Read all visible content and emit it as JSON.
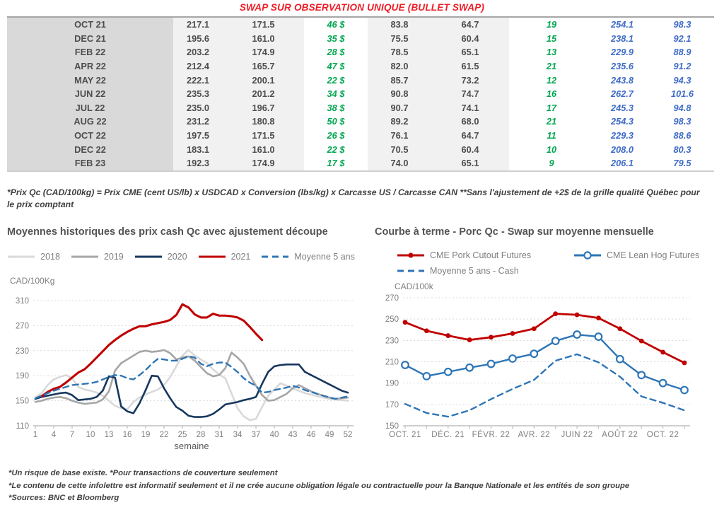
{
  "title": "SWAP SUR OBSERVATION UNIQUE (BULLET SWAP)",
  "colors": {
    "title_red": "#ee1c25",
    "table_green": "#00a650",
    "table_blue": "#3f6bc8",
    "grid": "#d9d9d9",
    "axis": "#bfbfbf",
    "tick_text": "#7f7f7f"
  },
  "table": {
    "rows": [
      [
        "OCT 21",
        "217.1",
        "171.5",
        "46 $",
        "83.8",
        "64.7",
        "19",
        "254.1",
        "98.3"
      ],
      [
        "DEC 21",
        "195.6",
        "161.0",
        "35 $",
        "75.5",
        "60.4",
        "15",
        "238.1",
        "92.1"
      ],
      [
        "FEB 22",
        "203.2",
        "174.9",
        "28 $",
        "78.5",
        "65.1",
        "13",
        "229.9",
        "88.9"
      ],
      [
        "APR 22",
        "212.4",
        "165.7",
        "47 $",
        "82.0",
        "61.5",
        "21",
        "235.6",
        "91.2"
      ],
      [
        "MAY 22",
        "222.1",
        "200.1",
        "22 $",
        "85.7",
        "73.2",
        "12",
        "243.8",
        "94.3"
      ],
      [
        "JUN 22",
        "235.3",
        "201.2",
        "34 $",
        "90.8",
        "74.7",
        "16",
        "262.7",
        "101.6"
      ],
      [
        "JUL 22",
        "235.0",
        "196.7",
        "38 $",
        "90.7",
        "74.1",
        "17",
        "245.3",
        "94.8"
      ],
      [
        "AUG 22",
        "231.2",
        "180.8",
        "50 $",
        "89.2",
        "68.0",
        "21",
        "254.3",
        "98.3"
      ],
      [
        "OCT 22",
        "197.5",
        "171.5",
        "26 $",
        "76.1",
        "64.7",
        "11",
        "229.3",
        "88.6"
      ],
      [
        "DEC 22",
        "183.1",
        "161.0",
        "22 $",
        "70.5",
        "60.4",
        "10",
        "208.0",
        "80.3"
      ],
      [
        "FEB 23",
        "192.3",
        "174.9",
        "17 $",
        "74.0",
        "65.1",
        "9",
        "206.1",
        "79.5"
      ]
    ]
  },
  "table_note": "*Prix Qc (CAD/100kg) = Prix CME (cent US/lb) x USDCAD x Conversion (lbs/kg) x Carcasse US / Carcasse CAN **Sans l'ajustement de +2$ de la grille qualité Québec pour le prix comptant",
  "chart_data": [
    {
      "type": "line",
      "title": "Moyennes historiques des prix cash Qc avec ajustement découpe",
      "unit_label": "CAD/100Kg",
      "xlabel": "semaine",
      "xlim": [
        1,
        52
      ],
      "x_ticks": [
        1,
        4,
        7,
        10,
        13,
        16,
        19,
        22,
        25,
        28,
        31,
        34,
        37,
        40,
        43,
        46,
        49,
        52
      ],
      "ylim": [
        110,
        310
      ],
      "y_ticks": [
        110,
        150,
        190,
        230,
        270,
        310
      ],
      "legend_position": "top",
      "grid": "horizontal-dashed",
      "series": [
        {
          "name": "2018",
          "color": "#d9d9d9",
          "values": [
            155,
            162,
            175,
            184,
            188,
            191,
            186,
            172,
            168,
            166,
            163,
            158,
            150,
            142,
            138,
            136,
            148,
            155,
            160,
            164,
            168,
            175,
            188,
            205,
            222,
            231,
            222,
            216,
            210,
            200,
            192,
            186,
            162,
            138,
            125,
            119,
            121,
            140,
            158,
            168,
            178,
            174,
            170,
            166,
            162,
            160,
            157,
            155,
            153,
            152,
            151,
            150
          ]
        },
        {
          "name": "2019",
          "color": "#a6a6a6",
          "values": [
            148,
            150,
            153,
            155,
            156,
            154,
            150,
            147,
            145,
            146,
            147,
            152,
            165,
            198,
            210,
            216,
            222,
            228,
            230,
            228,
            229,
            231,
            226,
            216,
            219,
            221,
            214,
            204,
            194,
            189,
            191,
            202,
            227,
            219,
            209,
            190,
            174,
            159,
            150,
            151,
            156,
            161,
            170,
            175,
            170,
            165,
            161,
            158,
            155,
            153,
            154,
            155
          ]
        },
        {
          "name": "2020",
          "color": "#17375e",
          "values": [
            153,
            156,
            158,
            160,
            162,
            163,
            159,
            151,
            152,
            153,
            156,
            166,
            189,
            187,
            141,
            133,
            130,
            146,
            167,
            190,
            189,
            170,
            154,
            140,
            134,
            126,
            124,
            124,
            125,
            129,
            136,
            144,
            146,
            148,
            151,
            153,
            156,
            177,
            196,
            205,
            207,
            208,
            208,
            208,
            196,
            191,
            186,
            181,
            176,
            171,
            166,
            163
          ]
        },
        {
          "name": "2021",
          "color": "#c00000",
          "values": [
            null,
            157,
            164,
            169,
            172,
            179,
            187,
            195,
            200,
            209,
            219,
            229,
            239,
            247,
            254,
            260,
            265,
            269,
            269,
            272,
            274,
            276,
            279,
            287,
            304,
            299,
            288,
            283,
            283,
            289,
            286,
            286,
            285,
            283,
            278,
            268,
            257,
            247
          ]
        },
        {
          "name": "Moyenne 5 ans",
          "color": "#2e75b6",
          "dashed": true,
          "values": [
            154,
            158,
            162,
            166,
            169,
            172,
            175,
            176,
            177,
            178,
            180,
            184,
            188,
            191,
            190,
            186,
            184,
            191,
            199,
            209,
            217,
            216,
            214,
            214,
            217,
            221,
            219,
            209,
            205,
            209,
            211,
            211,
            204,
            196,
            186,
            179,
            174,
            163,
            164,
            167,
            169,
            171,
            174,
            171,
            167,
            164,
            161,
            158,
            155,
            153,
            155,
            157
          ]
        }
      ]
    },
    {
      "type": "line",
      "title": "Courbe à terme - Porc Qc - Swap sur moyenne mensuelle",
      "unit_label": "CAD/100k",
      "x_tick_labels": [
        "OCT. 21",
        "DÉC. 21",
        "FÉVR. 22",
        "AVR. 22",
        "JUIN 22",
        "AOÛT 22",
        "OCT. 22"
      ],
      "label_every": 2,
      "n_points": 14,
      "ylim": [
        150,
        270
      ],
      "y_ticks": [
        150,
        170,
        190,
        210,
        230,
        250,
        270
      ],
      "legend_position": "top",
      "grid": "horizontal-dashed",
      "series": [
        {
          "name": "CME Pork Cutout Futures",
          "color": "#c00000",
          "marker": "filled-circle",
          "values": [
            247,
            239,
            234.5,
            230.5,
            233,
            236.5,
            241,
            255,
            254,
            251,
            241,
            229.5,
            219,
            209
          ]
        },
        {
          "name": "CME Lean Hog Futures",
          "color": "#2e75b6",
          "marker": "open-circle",
          "values": [
            207,
            196.5,
            200.5,
            204.5,
            208,
            213,
            217.5,
            229.5,
            235.5,
            233.5,
            212.5,
            197.5,
            190,
            183.5
          ]
        },
        {
          "name": "Moyenne 5 ans - Cash",
          "color": "#2e75b6",
          "dashed": true,
          "values": [
            170.5,
            162,
            158.5,
            164.5,
            175,
            184.5,
            193,
            211,
            217,
            209.5,
            196,
            177.5,
            171.5,
            164.5
          ]
        }
      ]
    }
  ],
  "footer_lines": [
    "*Un risque de base existe. *Pour transactions de couverture seulement",
    "*Le contenu de cette infolettre est informatif seulement et il ne crée aucune obligation légale ou contractuelle pour la Banque Nationale et les entités de son groupe",
    "*Sources: BNC et Bloomberg"
  ]
}
